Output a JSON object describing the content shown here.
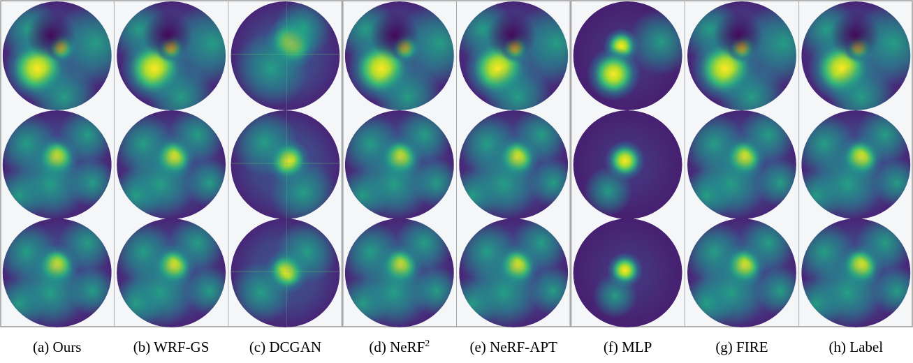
{
  "captions": [
    {
      "text": "(a) Ours"
    },
    {
      "text": "(b) WRF-GS"
    },
    {
      "text": "(c) DCGAN"
    },
    {
      "text": "(d) NeRF",
      "sup": "2"
    },
    {
      "text": "(e) NeRF-APT"
    },
    {
      "text": "(f) MLP"
    },
    {
      "text": "(g) FIRE"
    },
    {
      "text": "(h) Label"
    }
  ]
}
